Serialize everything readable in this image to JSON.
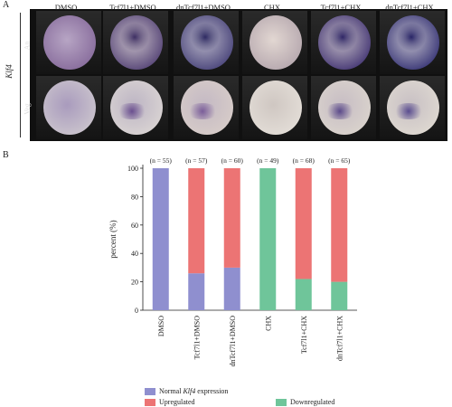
{
  "panel_a": {
    "letter": "A",
    "gene_label": "Klf4",
    "row_labels": [
      "An",
      "Veg"
    ],
    "columns": [
      "DMSO",
      "Tcf7l1+DMSO",
      "dnTcf7l1+DMSO",
      "CHX",
      "Tcf7l1+CHX",
      "dnTcf7l1+CHX"
    ]
  },
  "panel_b": {
    "letter": "B",
    "legend": {
      "normal_prefix": "Normal ",
      "normal_gene": "Klf4",
      "normal_suffix": " expression",
      "upregulated": "Upregulated",
      "downregulated": "Downregulated"
    },
    "colors": {
      "normal": "#8f8fcf",
      "up": "#ec7474",
      "down": "#6fc59a"
    },
    "n_labels": [
      "(n = 55)",
      "(n = 57)",
      "(n = 60)",
      "(n = 49)",
      "(n = 68)",
      "(n = 65)"
    ]
  },
  "chart_data": {
    "type": "bar",
    "stacked": true,
    "categories": [
      "DMSO",
      "Tcf7l1+DMSO",
      "dnTcf7l1+DMSO",
      "CHX",
      "Tcf7l1+CHX",
      "dnTcf7l1+CHX"
    ],
    "ylabel": "percent (%)",
    "ylim": [
      0,
      100
    ],
    "yticks": [
      "0",
      "20",
      "40",
      "60",
      "80",
      "100"
    ],
    "series": [
      {
        "name": "Normal Klf4 expression",
        "key": "normal",
        "values": [
          100,
          26,
          30,
          0,
          0,
          0
        ]
      },
      {
        "name": "Downregulated",
        "key": "down",
        "values": [
          0,
          0,
          0,
          100,
          22,
          20
        ]
      },
      {
        "name": "Upregulated",
        "key": "up",
        "values": [
          0,
          74,
          70,
          0,
          78,
          80
        ]
      }
    ]
  }
}
